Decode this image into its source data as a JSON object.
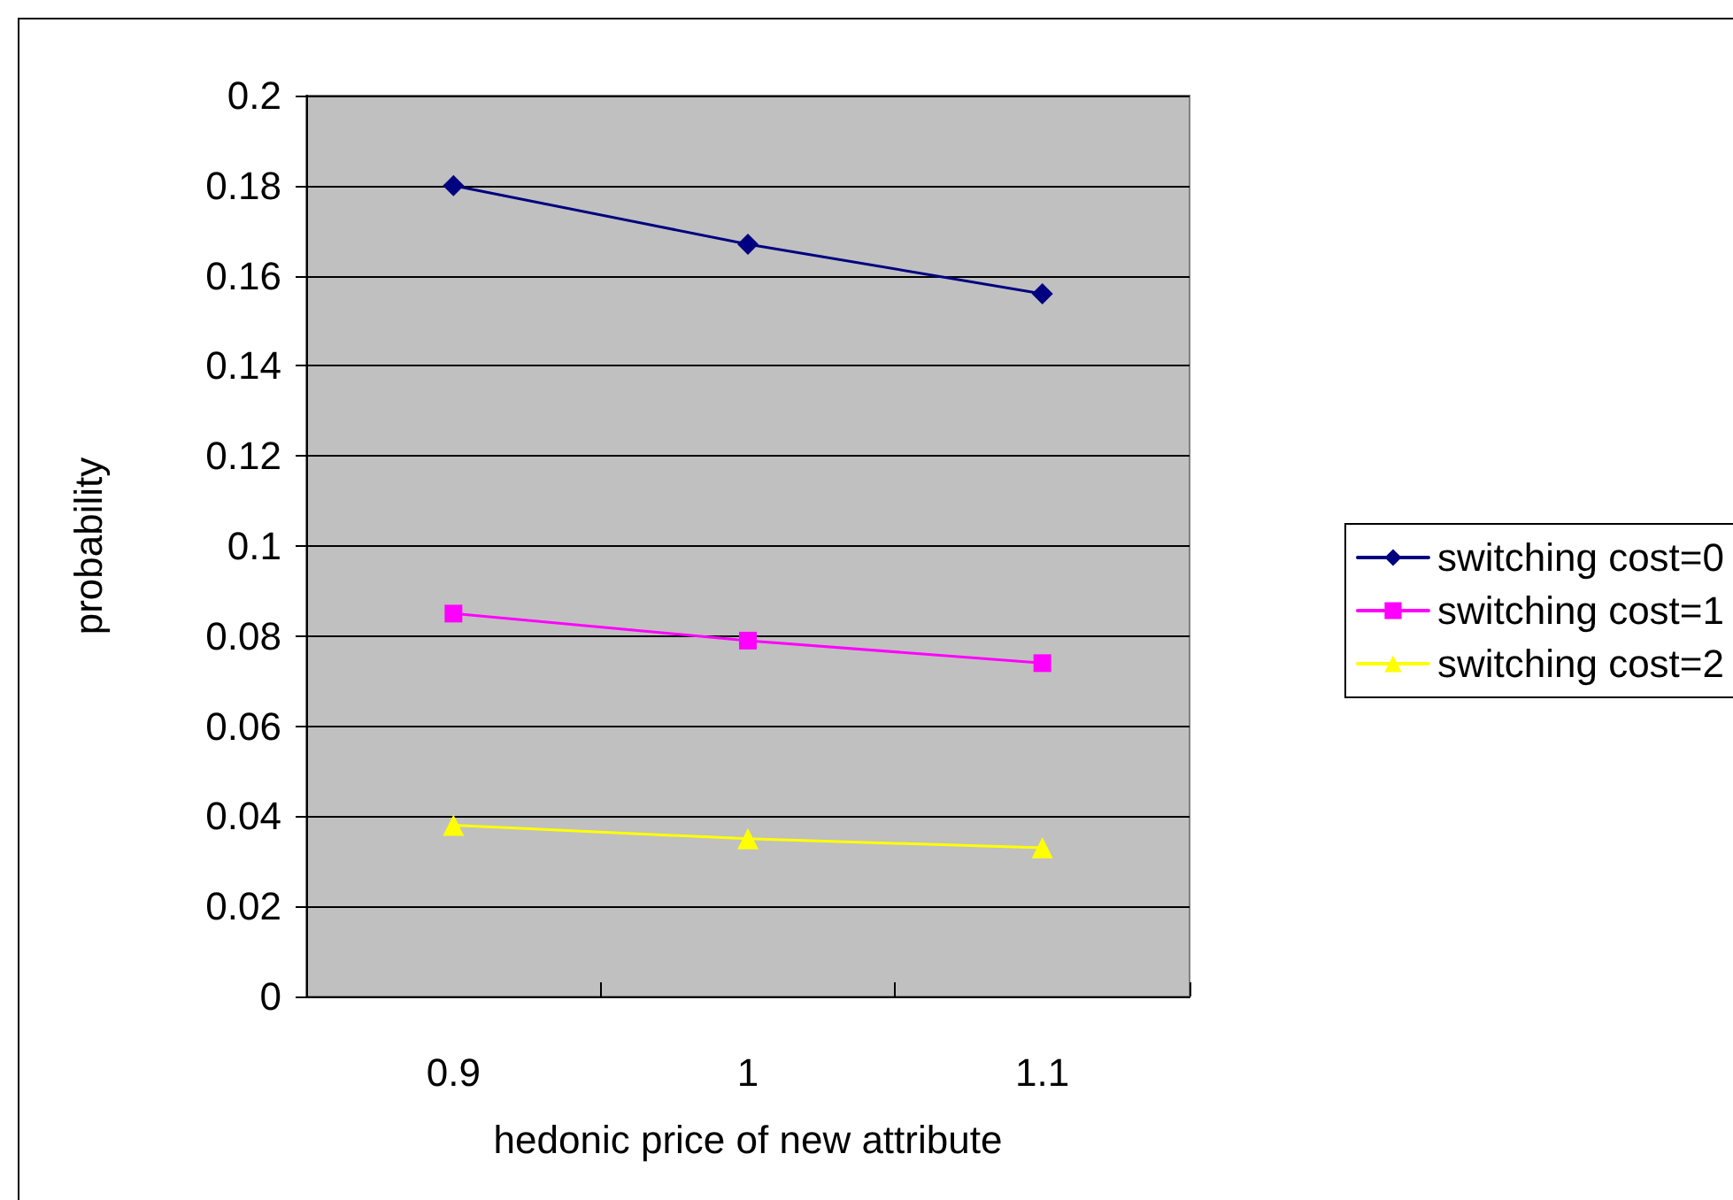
{
  "chart_data": {
    "type": "line",
    "xlabel": "hedonic price of new attribute",
    "ylabel": "probability",
    "categories": [
      "0.9",
      "1",
      "1.1"
    ],
    "series": [
      {
        "name": "switching cost=0",
        "color": "#000080",
        "marker": "diamond",
        "values": [
          0.18,
          0.167,
          0.156
        ]
      },
      {
        "name": "switching cost=1",
        "color": "#ff00ff",
        "marker": "square",
        "values": [
          0.085,
          0.079,
          0.074
        ]
      },
      {
        "name": "switching cost=2",
        "color": "#ffff00",
        "marker": "triangle",
        "values": [
          0.038,
          0.035,
          0.033
        ]
      }
    ],
    "ylim": [
      0,
      0.2
    ],
    "yticks": [
      0,
      0.02,
      0.04,
      0.06,
      0.08,
      0.1,
      0.12,
      0.14,
      0.16,
      0.18,
      0.2
    ],
    "grid": "y",
    "legend": "right",
    "line_style": "solid"
  }
}
